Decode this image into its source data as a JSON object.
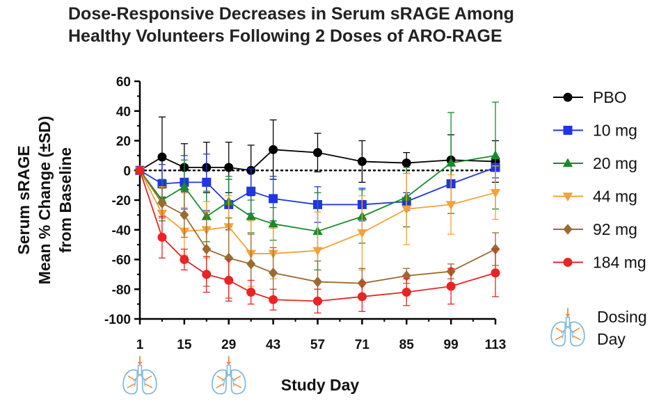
{
  "chart_data": {
    "type": "line",
    "title_lines": [
      "Dose-Responsive Decreases in Serum sRAGE Among",
      "Healthy Volunteers Following 2 Doses of ARO-RAGE"
    ],
    "xlabel": "Study Day",
    "ylabel_lines": [
      "Serum sRAGE",
      "Mean % Change (±SD)",
      "from Baseline"
    ],
    "xlim": [
      1,
      113
    ],
    "ylim": [
      -100,
      60
    ],
    "x_ticks": [
      1,
      15,
      29,
      43,
      57,
      71,
      85,
      99,
      113
    ],
    "y_ticks": [
      60,
      40,
      20,
      0,
      -20,
      -40,
      -60,
      -80,
      -100
    ],
    "reference_line_y": 0,
    "legend_position": "right",
    "series": [
      {
        "name": "PBO",
        "color": "#000000",
        "marker": "circle",
        "x": [
          1,
          8,
          15,
          22,
          29,
          36,
          43,
          57,
          71,
          85,
          99,
          113
        ],
        "y": [
          0,
          9,
          2,
          2,
          2,
          0,
          14,
          12,
          6,
          5,
          7,
          6
        ],
        "sd": [
          0,
          27,
          16,
          17,
          17,
          17,
          20,
          13,
          14,
          7,
          17,
          14
        ]
      },
      {
        "name": "10 mg",
        "color": "#1f36e0",
        "marker": "square",
        "x": [
          1,
          8,
          15,
          22,
          29,
          36,
          43,
          57,
          71,
          85,
          99,
          113
        ],
        "y": [
          0,
          -9,
          -8,
          -8,
          -23,
          -14,
          -19,
          -23,
          -23,
          -21,
          -9,
          2
        ],
        "sd": [
          0,
          13,
          18,
          19,
          17,
          15,
          15,
          12,
          11,
          6,
          13,
          7
        ]
      },
      {
        "name": "20 mg",
        "color": "#1a8a2a",
        "marker": "triangle-up",
        "x": [
          1,
          8,
          15,
          22,
          29,
          36,
          43,
          57,
          71,
          85,
          99,
          113
        ],
        "y": [
          0,
          -20,
          -11,
          -31,
          -21,
          -31,
          -36,
          -41,
          -31,
          -18,
          5,
          10
        ],
        "sd": [
          0,
          14,
          18,
          17,
          17,
          11,
          11,
          26,
          18,
          20,
          34,
          36
        ]
      },
      {
        "name": "44 mg",
        "color": "#f2a23a",
        "marker": "triangle-down",
        "x": [
          1,
          8,
          15,
          22,
          29,
          36,
          43,
          57,
          71,
          85,
          99,
          113
        ],
        "y": [
          0,
          -29,
          -41,
          -40,
          -38,
          -56,
          -56,
          -54,
          -42,
          -26,
          -23,
          -15
        ],
        "sd": [
          0,
          18,
          16,
          19,
          21,
          22,
          17,
          26,
          25,
          24,
          20,
          18
        ]
      },
      {
        "name": "92 mg",
        "color": "#9b6b30",
        "marker": "diamond",
        "x": [
          1,
          8,
          15,
          22,
          29,
          36,
          43,
          57,
          71,
          85,
          99,
          113
        ],
        "y": [
          0,
          -22,
          -30,
          -53,
          -59,
          -63,
          -69,
          -75,
          -76,
          -71,
          -68,
          -53
        ],
        "sd": [
          0,
          10,
          15,
          25,
          27,
          20,
          17,
          14,
          10,
          5,
          5,
          11
        ]
      },
      {
        "name": "184 mg",
        "color": "#e82424",
        "marker": "circle",
        "x": [
          1,
          8,
          15,
          22,
          29,
          36,
          43,
          57,
          71,
          85,
          99,
          113
        ],
        "y": [
          0,
          -45,
          -60,
          -70,
          -74,
          -82,
          -87,
          -88,
          -85,
          -82,
          -78,
          -69
        ],
        "sd": [
          0,
          14,
          7,
          12,
          14,
          8,
          7,
          8,
          10,
          9,
          12,
          16
        ]
      }
    ],
    "dosing_days": [
      1,
      29
    ],
    "dosing_icon": "lungs-inhaler-icon",
    "dosing_legend_label_lines": [
      "Dosing",
      "Day"
    ]
  }
}
